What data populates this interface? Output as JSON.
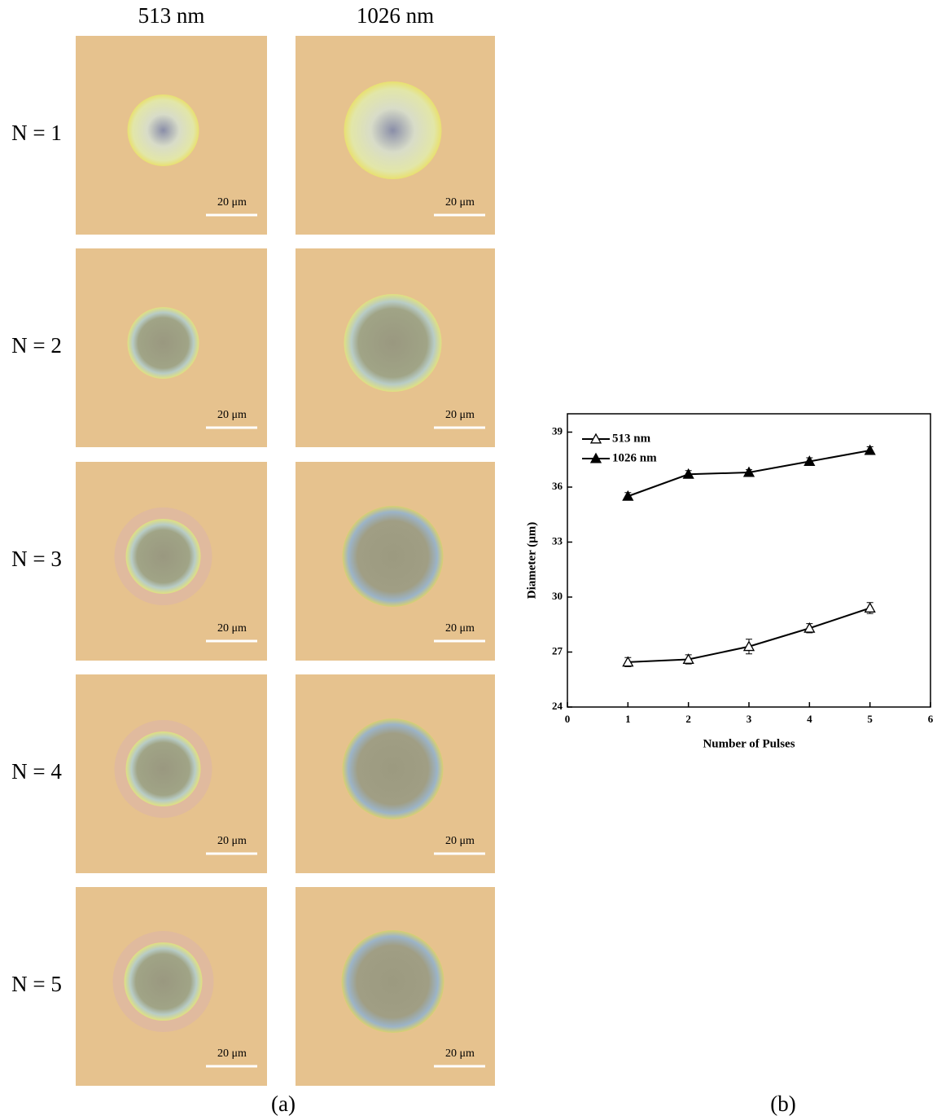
{
  "panel_a": {
    "columns": [
      "513 nm",
      "1026 nm"
    ],
    "rows": [
      "N = 1",
      "N = 2",
      "N = 3",
      "N = 4",
      "N = 5"
    ],
    "scale_bar_label": "20 μm",
    "caption": "(a)"
  },
  "caption_b": "(b)",
  "chart_data": {
    "type": "line",
    "x_label": "Number of Pulses",
    "y_label": "Diameter (μm)",
    "x": [
      1,
      2,
      3,
      4,
      5
    ],
    "series": [
      {
        "name": "513 nm",
        "color": "#000000",
        "marker": "open-triangle",
        "values": [
          26.45,
          26.6,
          27.3,
          28.3,
          29.4
        ],
        "errors": [
          0.25,
          0.25,
          0.4,
          0.25,
          0.3
        ]
      },
      {
        "name": "1026 nm",
        "color": "#000000",
        "marker": "filled-triangle",
        "values": [
          35.5,
          36.7,
          36.8,
          37.4,
          38.0
        ],
        "errors": [
          0.2,
          0.2,
          0.15,
          0.2,
          0.2
        ]
      }
    ],
    "xlim": [
      0,
      6
    ],
    "xticks": [
      0,
      1,
      2,
      3,
      4,
      5,
      6
    ],
    "ylim": [
      24,
      40
    ],
    "yticks": [
      24,
      27,
      30,
      33,
      36,
      39
    ],
    "legend": "upper-left"
  }
}
